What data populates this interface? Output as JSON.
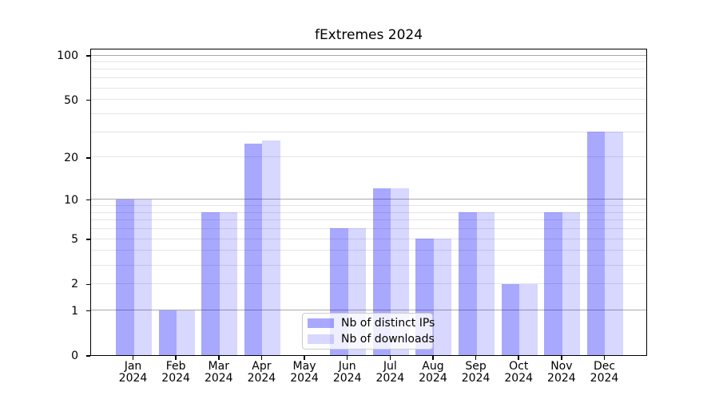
{
  "title": "fExtremes 2024",
  "legend": {
    "items": [
      {
        "label": "Nb of distinct IPs",
        "color": "rgba(0,0,255,0.34)"
      },
      {
        "label": "Nb of downloads",
        "color": "rgba(0,0,255,0.155)"
      }
    ]
  },
  "chart_data": {
    "type": "bar",
    "title": "fExtremes 2024",
    "scale": "log1p",
    "months": [
      "Jan",
      "Feb",
      "Mar",
      "Apr",
      "May",
      "Jun",
      "Jul",
      "Aug",
      "Sep",
      "Oct",
      "Nov",
      "Dec"
    ],
    "year": "2024",
    "series": [
      {
        "name": "Nb of distinct IPs",
        "color": "rgba(0,0,255,0.34)",
        "values": [
          10,
          1,
          8,
          25,
          0,
          6,
          12,
          5,
          8,
          2,
          8,
          30
        ]
      },
      {
        "name": "Nb of downloads",
        "color": "rgba(0,0,255,0.155)",
        "values": [
          10,
          1,
          8,
          26,
          0,
          6,
          12,
          5,
          8,
          2,
          8,
          30
        ]
      }
    ],
    "xlabel": "",
    "ylabel": "",
    "ylim": [
      0,
      100
    ],
    "y_ticks": [
      100,
      50,
      20,
      10,
      5,
      2,
      1,
      0
    ],
    "decade_gridlines": [
      1,
      10,
      100
    ],
    "minor_gridlines": [
      2,
      3,
      4,
      5,
      6,
      7,
      8,
      9,
      20,
      30,
      40,
      50,
      60,
      70,
      80,
      90
    ],
    "grid": true,
    "legend_position": "bottom-center"
  },
  "colors": {
    "bar_dark": "rgba(0,0,255,0.34)",
    "bar_light": "rgba(0,0,255,0.155)",
    "gridline_major": "#a9a9a9",
    "gridline_minor": "#e5e5e5",
    "spine": "#000000",
    "legend_border": "#cccccc",
    "legend_bg": "rgba(255,255,255,0.8)",
    "text": "#000000"
  }
}
